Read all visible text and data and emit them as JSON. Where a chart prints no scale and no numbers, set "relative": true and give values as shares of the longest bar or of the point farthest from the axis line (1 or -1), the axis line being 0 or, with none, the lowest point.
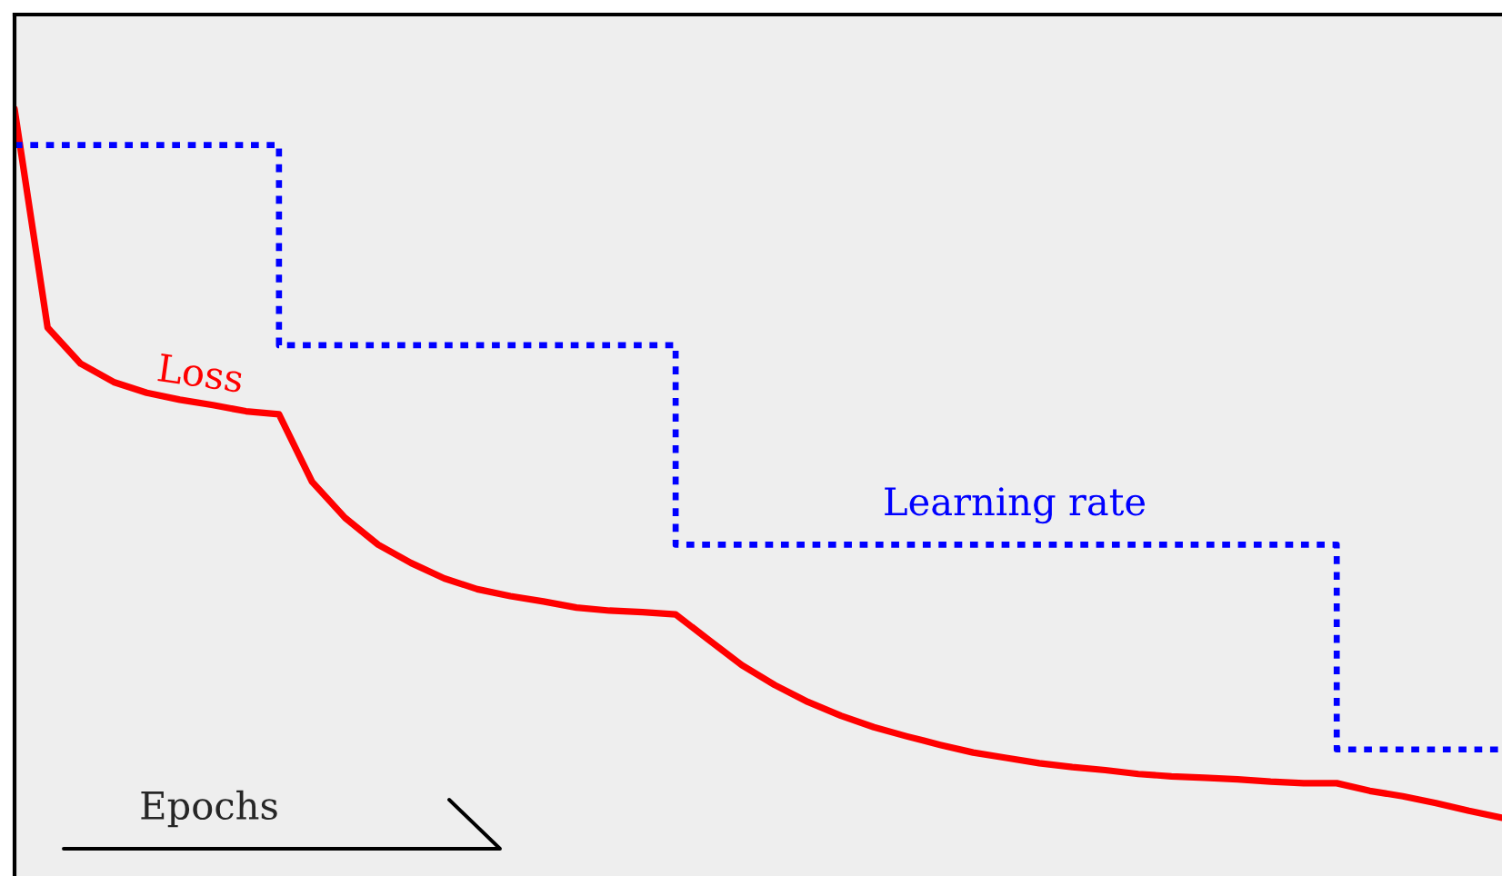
{
  "chart_data": {
    "type": "line",
    "relative": true,
    "xlabel": "Epochs",
    "categories": [
      null,
      null,
      null,
      null,
      null,
      null,
      null,
      null,
      null,
      null,
      null,
      null,
      null,
      null,
      null,
      null,
      null,
      null,
      null,
      null,
      null,
      null,
      null,
      null,
      null,
      null,
      null,
      null,
      null,
      null,
      null,
      null,
      null,
      null,
      null,
      null,
      null,
      null,
      null,
      null,
      null,
      null,
      null,
      null,
      null,
      null
    ],
    "series": [
      {
        "name": "Loss",
        "color": "#ff0000",
        "line_style": "solid",
        "values": [
          1.0,
          0.715,
          0.668,
          0.644,
          0.63,
          0.621,
          0.614,
          0.606,
          0.602,
          0.514,
          0.467,
          0.432,
          0.408,
          0.388,
          0.374,
          0.365,
          0.358,
          0.35,
          0.346,
          0.344,
          0.341,
          0.308,
          0.275,
          0.249,
          0.227,
          0.209,
          0.194,
          0.182,
          0.171,
          0.161,
          0.154,
          0.147,
          0.142,
          0.138,
          0.133,
          0.13,
          0.128,
          0.126,
          0.123,
          0.121,
          0.121,
          0.111,
          0.104,
          0.095,
          0.085,
          0.076
        ]
      },
      {
        "name": "Learning rate",
        "type": "step",
        "color": "#0000ff",
        "line_style": "dotted",
        "values": [
          0.953,
          0.953,
          0.953,
          0.953,
          0.953,
          0.953,
          0.953,
          0.953,
          0.692,
          0.692,
          0.692,
          0.692,
          0.692,
          0.692,
          0.692,
          0.692,
          0.692,
          0.692,
          0.692,
          0.692,
          0.432,
          0.432,
          0.432,
          0.432,
          0.432,
          0.432,
          0.432,
          0.432,
          0.432,
          0.432,
          0.432,
          0.432,
          0.432,
          0.432,
          0.432,
          0.432,
          0.432,
          0.432,
          0.432,
          0.432,
          0.165,
          0.165,
          0.165,
          0.165,
          0.165,
          0.165
        ]
      }
    ],
    "legend": false,
    "tick_labels": false
  }
}
